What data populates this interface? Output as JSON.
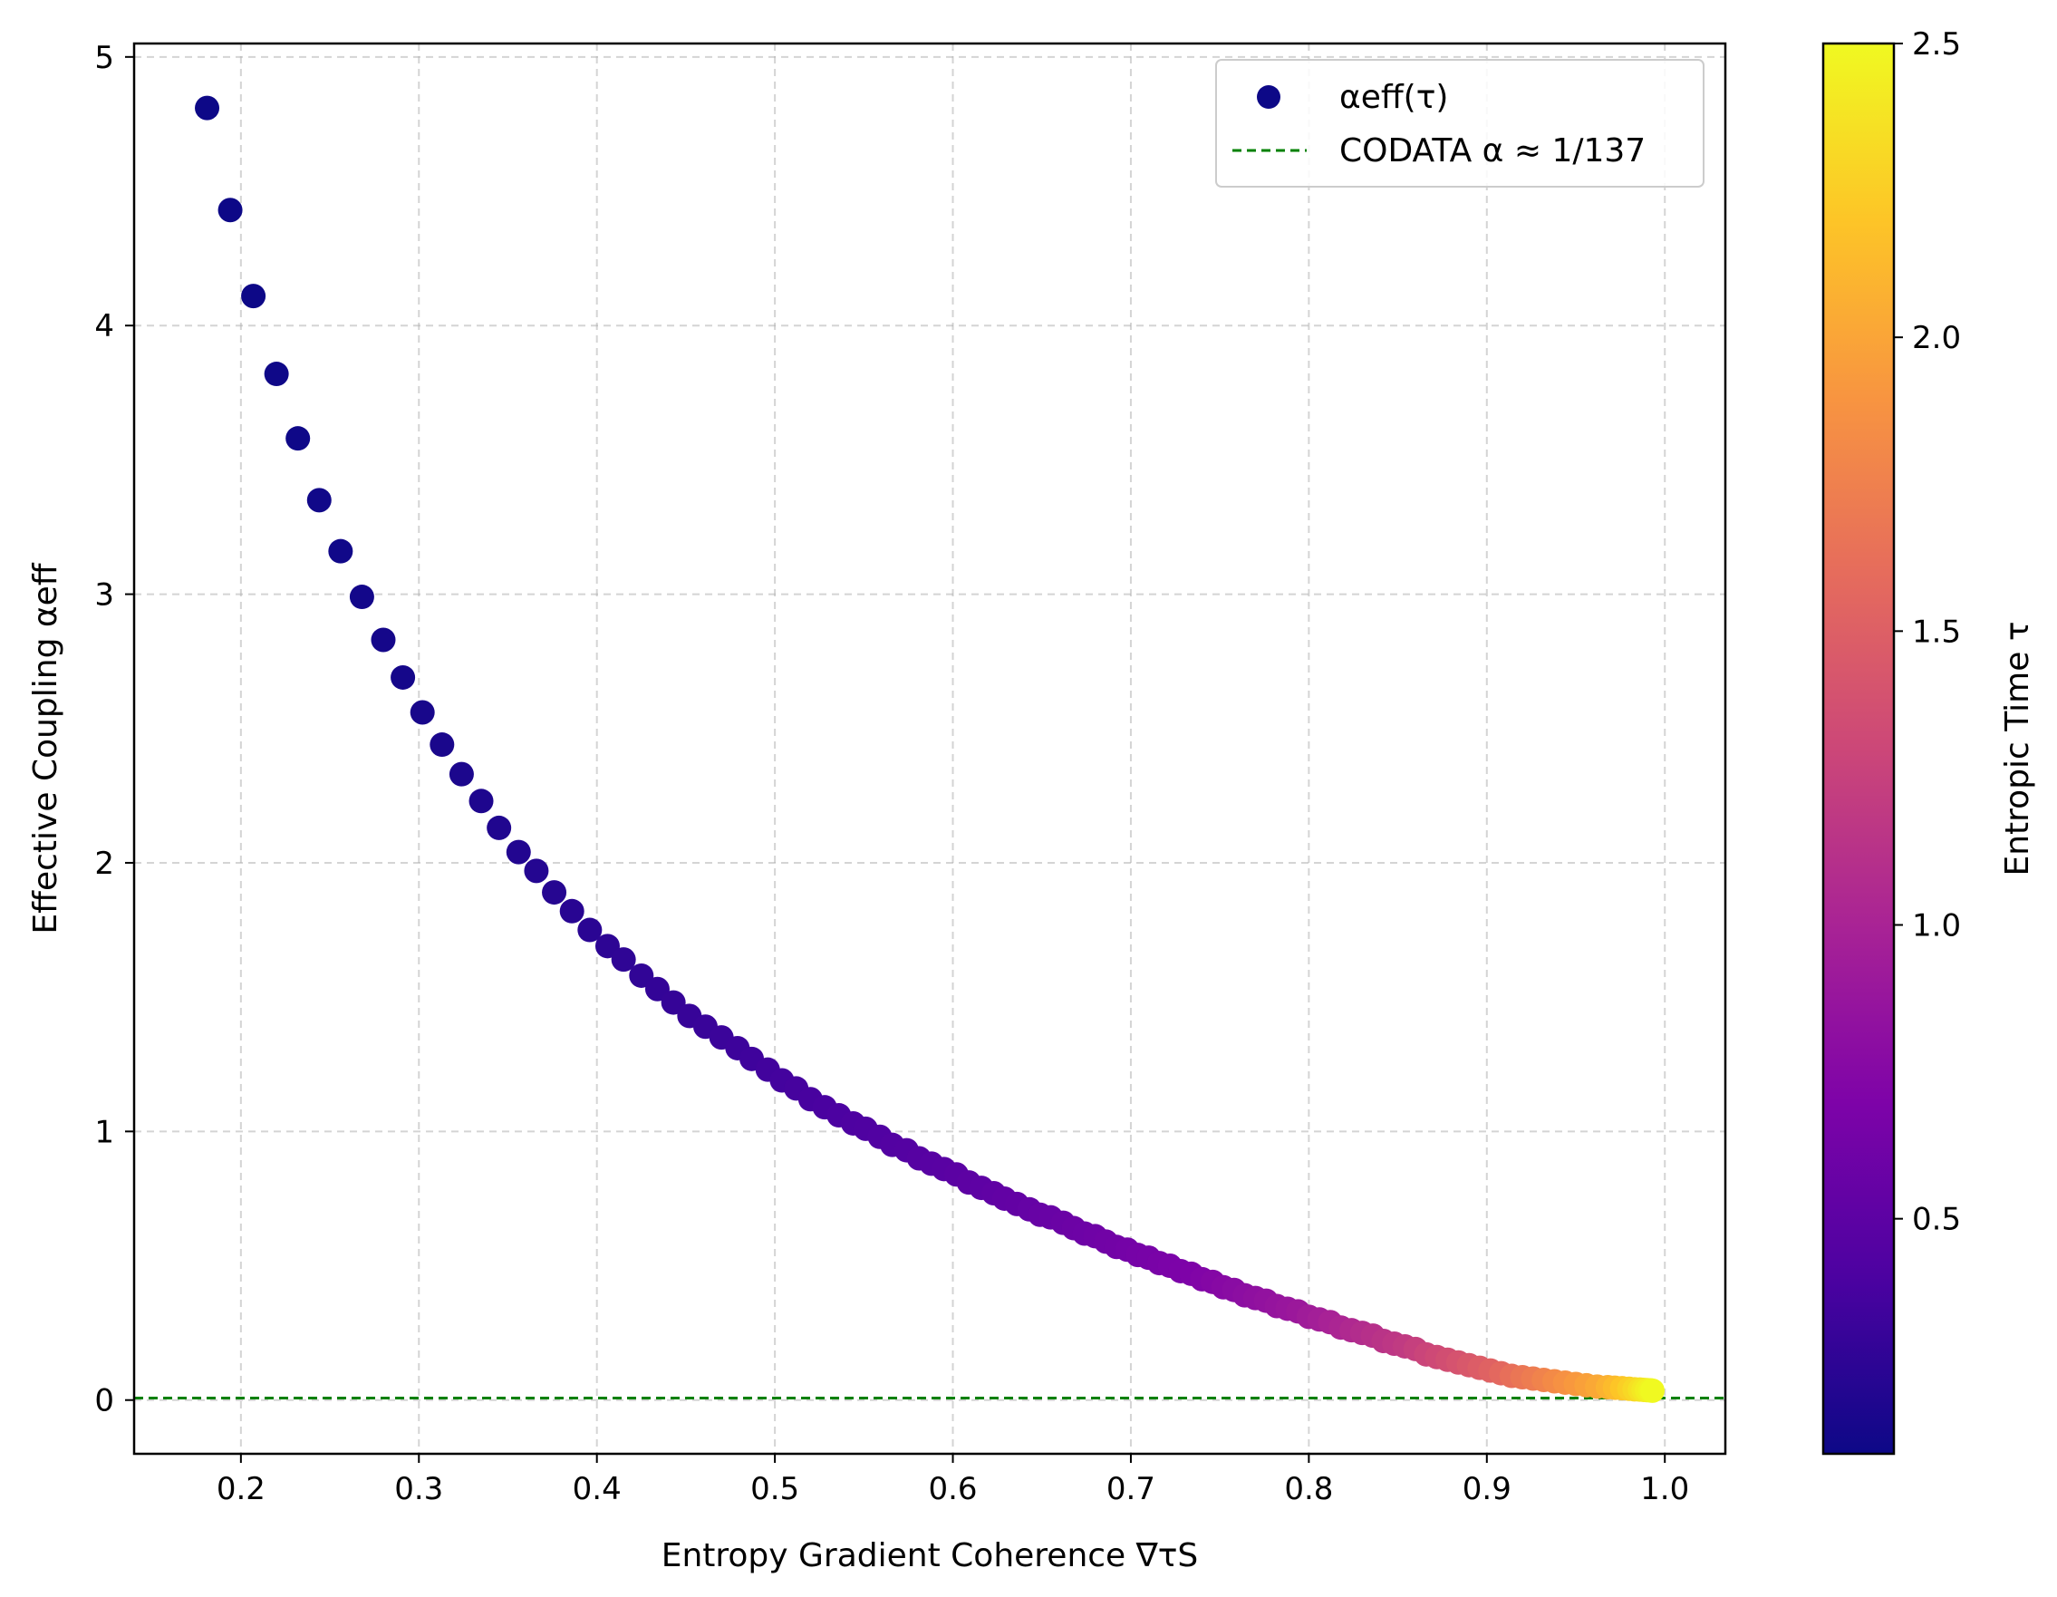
{
  "chart_data": {
    "type": "scatter",
    "xlabel": "Entropy Gradient Coherence ∇τS",
    "ylabel": "Effective Coupling αeff",
    "xlim": [
      0.14,
      1.034
    ],
    "ylim": [
      -0.2,
      5.05
    ],
    "x_ticks": [
      0.2,
      0.3,
      0.4,
      0.5,
      0.6,
      0.7,
      0.8,
      0.9,
      1.0
    ],
    "x_tick_labels": [
      "0.2",
      "0.3",
      "0.4",
      "0.5",
      "0.6",
      "0.7",
      "0.8",
      "0.9",
      "1.0"
    ],
    "y_ticks": [
      0,
      1,
      2,
      3,
      4,
      5
    ],
    "y_tick_labels": [
      "0",
      "1",
      "2",
      "3",
      "4",
      "5"
    ],
    "grid": true,
    "legend": {
      "placement": "top-right",
      "entries": [
        {
          "label": "αeff(τ)",
          "marker": "circle",
          "color": "#0d0887"
        },
        {
          "label": "CODATA α ≈ 1/137",
          "marker": "dashed-line",
          "color": "#008000"
        }
      ]
    },
    "reference_line": {
      "y": 0.0073,
      "color": "#008000",
      "style": "dashed"
    },
    "series": [
      {
        "name": "αeff(τ)",
        "x": [
          0.181,
          0.194,
          0.207,
          0.22,
          0.232,
          0.244,
          0.256,
          0.268,
          0.28,
          0.291,
          0.302,
          0.313,
          0.324,
          0.335,
          0.345,
          0.356,
          0.366,
          0.376,
          0.386,
          0.396,
          0.406,
          0.415,
          0.425,
          0.434,
          0.443,
          0.452,
          0.461,
          0.47,
          0.479,
          0.487,
          0.496,
          0.504,
          0.512,
          0.52,
          0.528,
          0.536,
          0.544,
          0.551,
          0.559,
          0.566,
          0.574,
          0.581,
          0.588,
          0.595,
          0.602,
          0.609,
          0.616,
          0.623,
          0.629,
          0.636,
          0.643,
          0.649,
          0.655,
          0.662,
          0.668,
          0.674,
          0.68,
          0.686,
          0.692,
          0.698,
          0.704,
          0.71,
          0.716,
          0.722,
          0.728,
          0.734,
          0.74,
          0.746,
          0.752,
          0.758,
          0.764,
          0.77,
          0.776,
          0.782,
          0.788,
          0.794,
          0.8,
          0.806,
          0.812,
          0.818,
          0.824,
          0.83,
          0.836,
          0.842,
          0.848,
          0.854,
          0.86,
          0.866,
          0.872,
          0.878,
          0.884,
          0.89,
          0.896,
          0.902,
          0.908,
          0.914,
          0.92,
          0.926,
          0.932,
          0.938,
          0.944,
          0.95,
          0.956,
          0.962,
          0.968,
          0.972,
          0.976,
          0.98,
          0.983,
          0.986,
          0.988,
          0.99,
          0.992,
          0.993
        ],
        "y": [
          4.81,
          4.43,
          4.11,
          3.82,
          3.58,
          3.35,
          3.16,
          2.99,
          2.83,
          2.69,
          2.56,
          2.44,
          2.33,
          2.23,
          2.13,
          2.04,
          1.97,
          1.89,
          1.82,
          1.75,
          1.69,
          1.64,
          1.58,
          1.53,
          1.48,
          1.43,
          1.39,
          1.35,
          1.31,
          1.27,
          1.23,
          1.19,
          1.16,
          1.12,
          1.09,
          1.06,
          1.03,
          1.01,
          0.98,
          0.95,
          0.93,
          0.9,
          0.88,
          0.86,
          0.84,
          0.81,
          0.79,
          0.77,
          0.75,
          0.73,
          0.71,
          0.69,
          0.68,
          0.66,
          0.64,
          0.62,
          0.61,
          0.59,
          0.57,
          0.56,
          0.54,
          0.53,
          0.51,
          0.5,
          0.48,
          0.47,
          0.45,
          0.44,
          0.42,
          0.41,
          0.39,
          0.38,
          0.37,
          0.35,
          0.34,
          0.33,
          0.31,
          0.3,
          0.29,
          0.27,
          0.26,
          0.25,
          0.24,
          0.22,
          0.21,
          0.2,
          0.19,
          0.17,
          0.16,
          0.15,
          0.14,
          0.13,
          0.12,
          0.11,
          0.1,
          0.09,
          0.085,
          0.08,
          0.075,
          0.07,
          0.065,
          0.06,
          0.055,
          0.05,
          0.048,
          0.046,
          0.044,
          0.042,
          0.04,
          0.039,
          0.038,
          0.037,
          0.036,
          0.035
        ],
        "tau": [
          0.1,
          0.1,
          0.1,
          0.11,
          0.11,
          0.12,
          0.12,
          0.13,
          0.14,
          0.14,
          0.15,
          0.16,
          0.17,
          0.18,
          0.19,
          0.2,
          0.21,
          0.22,
          0.23,
          0.24,
          0.25,
          0.26,
          0.27,
          0.28,
          0.29,
          0.3,
          0.31,
          0.32,
          0.33,
          0.34,
          0.35,
          0.36,
          0.37,
          0.38,
          0.39,
          0.4,
          0.41,
          0.42,
          0.43,
          0.44,
          0.45,
          0.46,
          0.47,
          0.48,
          0.49,
          0.5,
          0.51,
          0.52,
          0.53,
          0.54,
          0.55,
          0.56,
          0.57,
          0.58,
          0.59,
          0.6,
          0.61,
          0.62,
          0.63,
          0.64,
          0.65,
          0.66,
          0.67,
          0.68,
          0.69,
          0.7,
          0.72,
          0.74,
          0.76,
          0.78,
          0.8,
          0.82,
          0.84,
          0.86,
          0.88,
          0.9,
          0.93,
          0.96,
          0.99,
          1.02,
          1.05,
          1.08,
          1.11,
          1.14,
          1.17,
          1.2,
          1.24,
          1.28,
          1.32,
          1.36,
          1.4,
          1.44,
          1.48,
          1.52,
          1.57,
          1.62,
          1.67,
          1.72,
          1.77,
          1.82,
          1.87,
          1.92,
          1.97,
          2.02,
          2.08,
          2.14,
          2.2,
          2.26,
          2.31,
          2.36,
          2.4,
          2.44,
          2.47,
          2.5
        ]
      }
    ],
    "colorbar": {
      "label": "Entropic Time τ",
      "colormap": "plasma",
      "range": [
        0.1,
        2.5
      ],
      "ticks": [
        0.5,
        1.0,
        1.5,
        2.0,
        2.5
      ],
      "tick_labels": [
        "0.5",
        "1.0",
        "1.5",
        "2.0",
        "2.5"
      ]
    }
  }
}
